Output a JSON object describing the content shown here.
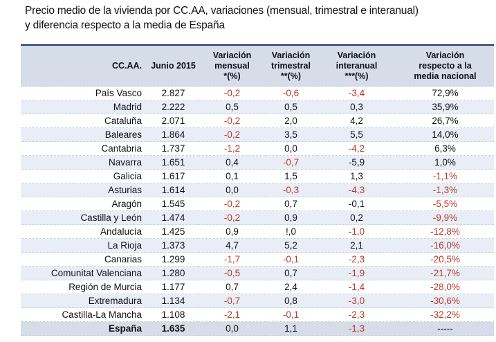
{
  "title": "Precio medio de la vivienda por CC.AA, variaciones (mensual, trimestral e interanual)\ny diferencia respecto a la media de España",
  "accent_colors": {
    "table_top_border": "#1f3864",
    "header_background": "#d6dde9",
    "band_background": "#e9eef6",
    "negative_red": "#bb3927"
  },
  "chart_data": {
    "type": "table",
    "title": "Precio medio de la vivienda por CC.AA, variaciones (mensual, trimestral e interanual) y diferencia respecto a la media de España",
    "columns": [
      {
        "label": "CC.AA."
      },
      {
        "label": "Junio 2015"
      },
      {
        "label": "Variación\nmensual\n*(%)"
      },
      {
        "label": "Variación\ntrimestral\n**(%)"
      },
      {
        "label": "Variación\ninteranual\n***(%)"
      },
      {
        "label": "Variación\nrespecto a la\nmedia nacional"
      }
    ],
    "rows": [
      {
        "name": "País Vasco",
        "bg": "white",
        "bold": false,
        "values": [
          {
            "t": "2.827",
            "c": "black"
          },
          {
            "t": "-0,2",
            "c": "red"
          },
          {
            "t": "-0,6",
            "c": "red"
          },
          {
            "t": "-3,4",
            "c": "red"
          },
          {
            "t": "72,9%",
            "c": "black"
          }
        ]
      },
      {
        "name": "Madrid",
        "bg": "light",
        "bold": false,
        "values": [
          {
            "t": "2.222",
            "c": "black"
          },
          {
            "t": "0,5",
            "c": "black"
          },
          {
            "t": "0,5",
            "c": "black"
          },
          {
            "t": "0,3",
            "c": "black"
          },
          {
            "t": "35,9%",
            "c": "black"
          }
        ]
      },
      {
        "name": "Cataluña",
        "bg": "white",
        "bold": false,
        "values": [
          {
            "t": "2.071",
            "c": "black"
          },
          {
            "t": "-0,2",
            "c": "red"
          },
          {
            "t": "2,0",
            "c": "black"
          },
          {
            "t": "4,2",
            "c": "black"
          },
          {
            "t": "26,7%",
            "c": "black"
          }
        ]
      },
      {
        "name": "Baleares",
        "bg": "light",
        "bold": false,
        "values": [
          {
            "t": "1.864",
            "c": "black"
          },
          {
            "t": "-0,2",
            "c": "red"
          },
          {
            "t": "3,5",
            "c": "black"
          },
          {
            "t": "5,5",
            "c": "black"
          },
          {
            "t": "14,0%",
            "c": "black"
          }
        ]
      },
      {
        "name": "Cantabria",
        "bg": "white",
        "bold": false,
        "values": [
          {
            "t": "1.737",
            "c": "black"
          },
          {
            "t": "-1,2",
            "c": "red"
          },
          {
            "t": "0,0",
            "c": "black"
          },
          {
            "t": "-4,2",
            "c": "red"
          },
          {
            "t": "6,3%",
            "c": "black"
          }
        ]
      },
      {
        "name": "Navarra",
        "bg": "light",
        "bold": false,
        "values": [
          {
            "t": "1.651",
            "c": "black"
          },
          {
            "t": "0,4",
            "c": "black"
          },
          {
            "t": "-0,7",
            "c": "red"
          },
          {
            "t": "-5,9",
            "c": "black"
          },
          {
            "t": "1,0%",
            "c": "black"
          }
        ]
      },
      {
        "name": "Galicia",
        "bg": "white",
        "bold": false,
        "values": [
          {
            "t": "1.617",
            "c": "black"
          },
          {
            "t": "0,1",
            "c": "black"
          },
          {
            "t": "1,5",
            "c": "black"
          },
          {
            "t": "1,3",
            "c": "black"
          },
          {
            "t": "-1,1%",
            "c": "red"
          }
        ]
      },
      {
        "name": "Asturias",
        "bg": "light",
        "bold": false,
        "values": [
          {
            "t": "1.614",
            "c": "black"
          },
          {
            "t": "0,0",
            "c": "black"
          },
          {
            "t": "-0,3",
            "c": "red"
          },
          {
            "t": "-4,3",
            "c": "red"
          },
          {
            "t": "-1,3%",
            "c": "red"
          }
        ]
      },
      {
        "name": "Aragón",
        "bg": "white",
        "bold": false,
        "values": [
          {
            "t": "1.545",
            "c": "black"
          },
          {
            "t": "-0,2",
            "c": "red"
          },
          {
            "t": "0,7",
            "c": "black"
          },
          {
            "t": "-0,1",
            "c": "black"
          },
          {
            "t": "-5,5%",
            "c": "red"
          }
        ]
      },
      {
        "name": "Castilla y León",
        "bg": "light",
        "bold": false,
        "values": [
          {
            "t": "1.474",
            "c": "black"
          },
          {
            "t": "-0,2",
            "c": "red"
          },
          {
            "t": "0,9",
            "c": "black"
          },
          {
            "t": "0,2",
            "c": "black"
          },
          {
            "t": "-9,9%",
            "c": "red"
          }
        ]
      },
      {
        "name": "Andalucía",
        "bg": "white",
        "bold": false,
        "values": [
          {
            "t": "1.425",
            "c": "black"
          },
          {
            "t": "0,9",
            "c": "black"
          },
          {
            "t": "!,0",
            "c": "black"
          },
          {
            "t": "-1,0",
            "c": "red"
          },
          {
            "t": "-12,8%",
            "c": "red"
          }
        ]
      },
      {
        "name": "La Rioja",
        "bg": "light",
        "bold": false,
        "values": [
          {
            "t": "1.373",
            "c": "black"
          },
          {
            "t": "4,7",
            "c": "black"
          },
          {
            "t": "5,2",
            "c": "black"
          },
          {
            "t": "2,1",
            "c": "black"
          },
          {
            "t": "-16,0%",
            "c": "red"
          }
        ]
      },
      {
        "name": "Canarias",
        "bg": "white",
        "bold": false,
        "values": [
          {
            "t": "1.299",
            "c": "black"
          },
          {
            "t": "-1,7",
            "c": "red"
          },
          {
            "t": "-0,1",
            "c": "red"
          },
          {
            "t": "-2,3",
            "c": "red"
          },
          {
            "t": "-20,5%",
            "c": "red"
          }
        ]
      },
      {
        "name": "Comunitat Valenciana",
        "bg": "light",
        "bold": false,
        "values": [
          {
            "t": "1.280",
            "c": "black"
          },
          {
            "t": "-0,5",
            "c": "red"
          },
          {
            "t": "0,7",
            "c": "black"
          },
          {
            "t": "-1,9",
            "c": "red"
          },
          {
            "t": "-21,7%",
            "c": "red"
          }
        ]
      },
      {
        "name": "Región de Murcia",
        "bg": "white",
        "bold": false,
        "values": [
          {
            "t": "1.177",
            "c": "black"
          },
          {
            "t": "0,7",
            "c": "black"
          },
          {
            "t": "2,4",
            "c": "black"
          },
          {
            "t": "-1,4",
            "c": "red"
          },
          {
            "t": "-28,0%",
            "c": "red"
          }
        ]
      },
      {
        "name": "Extremadura",
        "bg": "light",
        "bold": false,
        "values": [
          {
            "t": "1.134",
            "c": "black"
          },
          {
            "t": "-0,7",
            "c": "red"
          },
          {
            "t": "0,8",
            "c": "black"
          },
          {
            "t": "-3,0",
            "c": "red"
          },
          {
            "t": "-30,6%",
            "c": "red"
          }
        ]
      },
      {
        "name": "Castilla-La Mancha",
        "bg": "white",
        "bold": false,
        "values": [
          {
            "t": "1.108",
            "c": "black"
          },
          {
            "t": "-2,1",
            "c": "red"
          },
          {
            "t": "-0,1",
            "c": "red"
          },
          {
            "t": "-2,3",
            "c": "red"
          },
          {
            "t": "-32,2%",
            "c": "red"
          }
        ]
      },
      {
        "name": "España",
        "bg": "strong",
        "bold": true,
        "values": [
          {
            "t": "1.635",
            "c": "black",
            "b": true
          },
          {
            "t": "0,0",
            "c": "black"
          },
          {
            "t": "1,1",
            "c": "black"
          },
          {
            "t": "-1,3",
            "c": "red"
          },
          {
            "t": "-----",
            "c": "black"
          }
        ]
      }
    ]
  }
}
